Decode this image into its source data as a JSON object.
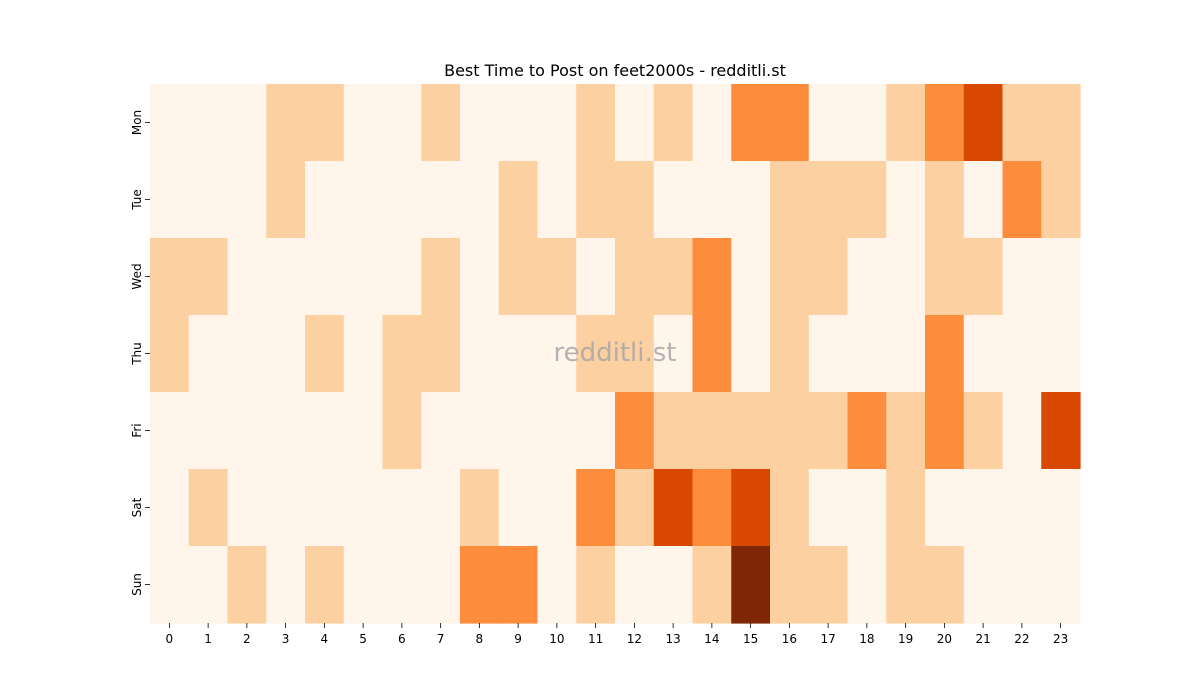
{
  "chart_data": {
    "type": "heatmap",
    "title": "Best Time to Post on feet2000s - redditli.st",
    "xlabel": "",
    "ylabel": "",
    "x_categories": [
      "0",
      "1",
      "2",
      "3",
      "4",
      "5",
      "6",
      "7",
      "8",
      "9",
      "10",
      "11",
      "12",
      "13",
      "14",
      "15",
      "16",
      "17",
      "18",
      "19",
      "20",
      "21",
      "22",
      "23"
    ],
    "y_categories": [
      "Mon",
      "Tue",
      "Wed",
      "Thu",
      "Fri",
      "Sat",
      "Sun"
    ],
    "values": [
      [
        0,
        0,
        0,
        1,
        1,
        0,
        0,
        1,
        0,
        0,
        0,
        1,
        0,
        1,
        0,
        2,
        2,
        0,
        0,
        1,
        2,
        3,
        1,
        1
      ],
      [
        0,
        0,
        0,
        1,
        0,
        0,
        0,
        0,
        0,
        1,
        0,
        1,
        1,
        0,
        0,
        0,
        1,
        1,
        1,
        0,
        1,
        0,
        2,
        1
      ],
      [
        1,
        1,
        0,
        0,
        0,
        0,
        0,
        1,
        0,
        1,
        1,
        0,
        1,
        1,
        2,
        0,
        1,
        1,
        0,
        0,
        1,
        1,
        0,
        0
      ],
      [
        1,
        0,
        0,
        0,
        1,
        0,
        1,
        1,
        0,
        0,
        0,
        1,
        1,
        0,
        2,
        0,
        1,
        0,
        0,
        0,
        2,
        0,
        0,
        0
      ],
      [
        0,
        0,
        0,
        0,
        0,
        0,
        1,
        0,
        0,
        0,
        0,
        0,
        2,
        1,
        1,
        1,
        1,
        1,
        2,
        1,
        2,
        1,
        0,
        3
      ],
      [
        0,
        1,
        0,
        0,
        0,
        0,
        0,
        0,
        1,
        0,
        0,
        2,
        1,
        3,
        2,
        3,
        1,
        0,
        0,
        1,
        0,
        0,
        0,
        0
      ],
      [
        0,
        0,
        1,
        0,
        1,
        0,
        0,
        0,
        2,
        2,
        0,
        1,
        0,
        0,
        1,
        4,
        1,
        1,
        0,
        1,
        1,
        0,
        0,
        0
      ]
    ],
    "colorscale": [
      "#fff5eb",
      "#fdd0a2",
      "#fd8d3c",
      "#d94801",
      "#7f2704"
    ],
    "colorbar": false,
    "grid": false,
    "watermark": "redditli.st"
  }
}
